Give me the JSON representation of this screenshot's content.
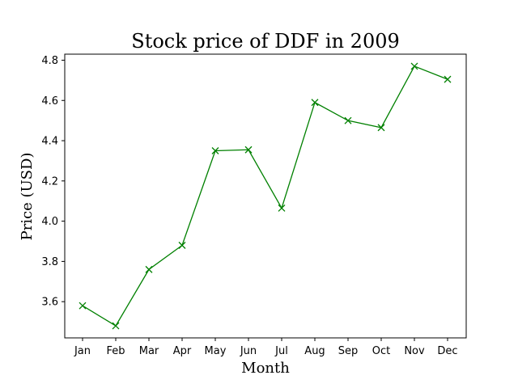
{
  "chart_data": {
    "type": "line",
    "title": "Stock price of DDF in 2009",
    "xlabel": "Month",
    "ylabel": "Price (USD)",
    "categories": [
      "Jan",
      "Feb",
      "Mar",
      "Apr",
      "May",
      "Jun",
      "Jul",
      "Aug",
      "Sep",
      "Oct",
      "Nov",
      "Dec"
    ],
    "series": [
      {
        "values": [
          3.58,
          3.48,
          3.76,
          3.88,
          4.35,
          4.355,
          4.065,
          4.59,
          4.5,
          4.465,
          4.77,
          4.705
        ],
        "color": "#008000",
        "marker": "x"
      }
    ],
    "yticks": [
      "3.6",
      "3.8",
      "4.0",
      "4.2",
      "4.4",
      "4.6",
      "4.8"
    ],
    "ylim": [
      3.42,
      4.83
    ],
    "grid": false,
    "legend": "none"
  }
}
